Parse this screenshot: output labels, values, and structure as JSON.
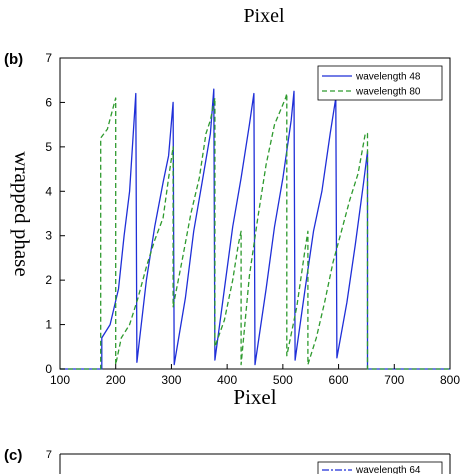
{
  "top_xlabel": "Pixel",
  "chart_data": {
    "type": "line",
    "panel_label": "(b)",
    "xlabel": "Pixel",
    "ylabel": "wrapped phase",
    "xlim": [
      100,
      800
    ],
    "ylim": [
      0,
      7
    ],
    "xticks": [
      100,
      200,
      300,
      400,
      500,
      600,
      700,
      800
    ],
    "yticks": [
      0,
      1,
      2,
      3,
      4,
      5,
      6,
      7
    ],
    "grid": false,
    "legend_position": "top-right",
    "series": [
      {
        "name": "wavelength 48",
        "color": "#1f2fd8",
        "style": "solid",
        "x": [
          100,
          175,
          175,
          190,
          205,
          215,
          225,
          236,
          238,
          238,
          255,
          270,
          285,
          295,
          303,
          305,
          305,
          325,
          340,
          355,
          370,
          376,
          378,
          378,
          395,
          410,
          425,
          440,
          448,
          450,
          450,
          470,
          485,
          500,
          515,
          520,
          522,
          522,
          540,
          555,
          570,
          585,
          595,
          597,
          597,
          615,
          630,
          645,
          652,
          652,
          800
        ],
        "y": [
          0,
          0,
          0.7,
          1.0,
          1.8,
          3.0,
          4.0,
          6.2,
          0.15,
          0.15,
          2.0,
          3.2,
          4.2,
          4.8,
          6.0,
          0.1,
          0.1,
          1.6,
          3.1,
          4.2,
          5.3,
          6.3,
          0.2,
          0.2,
          1.8,
          3.2,
          4.3,
          5.5,
          6.2,
          0.1,
          0.1,
          1.8,
          3.2,
          4.3,
          5.6,
          6.25,
          0.2,
          0.2,
          1.8,
          3.1,
          4.0,
          5.3,
          6.1,
          0.25,
          0.25,
          1.5,
          2.8,
          4.2,
          4.9,
          0,
          0
        ]
      },
      {
        "name": "wavelength 80",
        "color": "#2e9a2e",
        "style": "dashed",
        "x": [
          100,
          173,
          173,
          185,
          200,
          200,
          210,
          225,
          240,
          255,
          270,
          285,
          295,
          303,
          303,
          320,
          335,
          350,
          362,
          370,
          378,
          378,
          395,
          410,
          420,
          425,
          425,
          440,
          455,
          470,
          485,
          495,
          505,
          507,
          507,
          525,
          540,
          545,
          545,
          560,
          575,
          590,
          605,
          620,
          635,
          648,
          652,
          652,
          800
        ],
        "y": [
          0,
          0,
          5.2,
          5.4,
          6.1,
          0.1,
          0.7,
          1.0,
          1.6,
          2.3,
          2.9,
          3.4,
          4.3,
          5.0,
          1.4,
          2.5,
          3.5,
          4.3,
          5.3,
          5.6,
          6.1,
          0.5,
          1.1,
          2.0,
          2.8,
          3.1,
          0.1,
          2.1,
          3.4,
          4.6,
          5.5,
          5.8,
          6.1,
          6.2,
          0.3,
          1.4,
          2.7,
          3.1,
          0.1,
          0.7,
          1.5,
          2.4,
          3.1,
          3.8,
          4.4,
          5.3,
          5.3,
          0,
          0
        ]
      }
    ]
  },
  "next_panel": {
    "panel_label": "(c)",
    "ytick_top": "7",
    "legend_first_entry": "wavelength 64"
  }
}
